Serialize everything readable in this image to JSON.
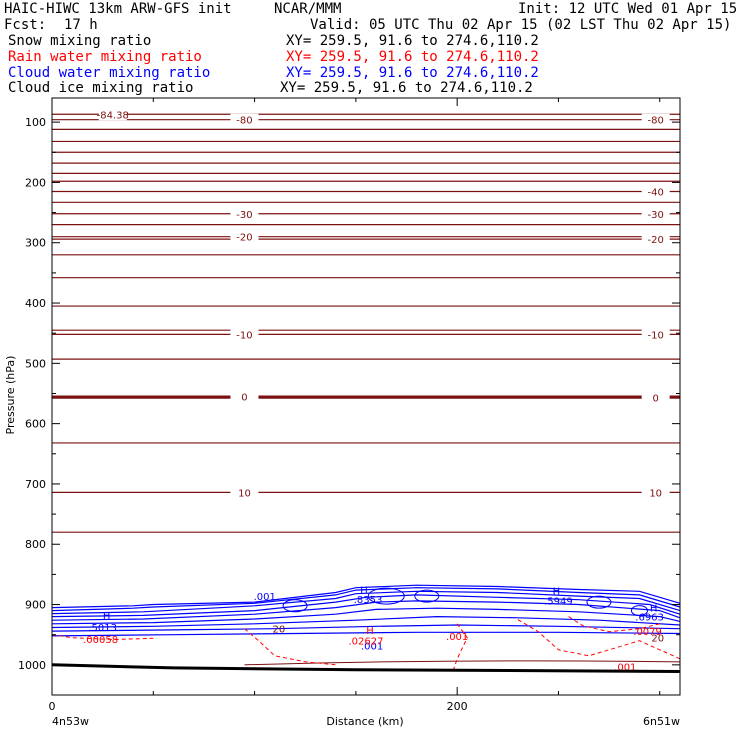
{
  "header": {
    "model": "HAIC-HIWC 13km ARW-GFS init",
    "org": "NCAR/MMM",
    "init": "Init: 12 UTC Wed 01 Apr 15",
    "fcst_label": "Fcst:",
    "fcst_value": "17 h",
    "valid": "Valid: 05 UTC Thu 02 Apr 15 (02 LST Thu 02 Apr 15)"
  },
  "fields": [
    {
      "name": "Snow mixing ratio",
      "xy": "XY= 259.5, 91.6 to 274.6,110.2",
      "color": "#000000"
    },
    {
      "name": "Rain water mixing ratio",
      "xy": "XY= 259.5, 91.6 to 274.6,110.2",
      "color": "#ff0000"
    },
    {
      "name": "Cloud water mixing ratio",
      "xy": "XY= 259.5, 91.6 to 274.6,110.2",
      "color": "#0000ff"
    },
    {
      "name": "Cloud ice mixing ratio",
      "xy": "XY= 259.5, 91.6 to 274.6,110.2",
      "color": "#000000"
    }
  ],
  "chart_data": {
    "type": "line",
    "xlabel": "Distance (km)",
    "ylabel": "Pressure (hPa)",
    "xlim": [
      0,
      310
    ],
    "ylim": [
      1050,
      60
    ],
    "x_ticks": [
      0,
      200
    ],
    "x_minor_ticks": [
      50,
      100,
      150,
      250,
      300
    ],
    "y_ticks": [
      100,
      200,
      300,
      400,
      500,
      600,
      700,
      800,
      900,
      1000
    ],
    "endpoints": {
      "left": "4n53w",
      "right": "6n51w"
    },
    "temperature_contour_color": "#7b1010",
    "temperature_isotherms": [
      {
        "p": 87,
        "label": "-84.38",
        "lx": 30
      },
      {
        "p": 96,
        "label": "-80",
        "lx": 95
      },
      {
        "p": 96,
        "label": "-80",
        "lx": 298
      },
      {
        "p": 112
      },
      {
        "p": 132
      },
      {
        "p": 150
      },
      {
        "p": 168
      },
      {
        "p": 185
      },
      {
        "p": 198
      },
      {
        "p": 215,
        "label": "-40",
        "lx": 298
      },
      {
        "p": 233
      },
      {
        "p": 252,
        "label": "-30",
        "lx": 95
      },
      {
        "p": 252,
        "label": "-30",
        "lx": 298
      },
      {
        "p": 270
      },
      {
        "p": 290,
        "label": "-20",
        "lx": 95
      },
      {
        "p": 294,
        "label": "-20",
        "lx": 298
      },
      {
        "p": 320
      },
      {
        "p": 358
      },
      {
        "p": 405
      },
      {
        "p": 445
      },
      {
        "p": 452,
        "label": "-10",
        "lx": 95
      },
      {
        "p": 452,
        "label": "-10",
        "lx": 298
      },
      {
        "p": 493
      },
      {
        "p": 555,
        "label": "0",
        "lx": 95
      },
      {
        "p": 557,
        "label": "0",
        "lx": 298
      },
      {
        "p": 632
      },
      {
        "p": 714,
        "label": "10",
        "lx": 95
      },
      {
        "p": 714,
        "label": "10",
        "lx": 298
      },
      {
        "p": 780
      }
    ],
    "cloud_water": {
      "color": "#0000ff",
      "labels": [
        {
          "text": ".001",
          "x": 105,
          "p": 886
        },
        {
          "text": "H",
          "x": 154,
          "p": 875
        },
        {
          "text": ".8353",
          "x": 156,
          "p": 891
        },
        {
          "text": "H",
          "x": 249,
          "p": 877
        },
        {
          "text": ".5949",
          "x": 250,
          "p": 893
        },
        {
          "text": "H",
          "x": 27,
          "p": 917
        },
        {
          "text": ".5013",
          "x": 25,
          "p": 937
        },
        {
          "text": "H",
          "x": 297,
          "p": 905
        },
        {
          "text": ".6963",
          "x": 295,
          "p": 920
        },
        {
          "text": ".001",
          "x": 158,
          "p": 968
        }
      ]
    },
    "rain_water": {
      "color": "#ff0000",
      "labels": [
        {
          "text": ".00058",
          "x": 24,
          "p": 957
        },
        {
          "text": "H",
          "x": 157,
          "p": 942
        },
        {
          "text": ".02627",
          "x": 155,
          "p": 960
        },
        {
          "text": ".001",
          "x": 200,
          "p": 952
        },
        {
          "text": ".001",
          "x": 283,
          "p": 1003
        },
        {
          "text": ".0079",
          "x": 294,
          "p": 944
        }
      ]
    },
    "isotherm_labels_low": [
      {
        "text": "20",
        "x": 112,
        "p": 940
      },
      {
        "text": "20",
        "x": 299,
        "p": 955
      }
    ],
    "surface_pressure": [
      [
        0,
        1000
      ],
      [
        60,
        1005
      ],
      [
        150,
        1008
      ],
      [
        310,
        1011
      ]
    ]
  }
}
